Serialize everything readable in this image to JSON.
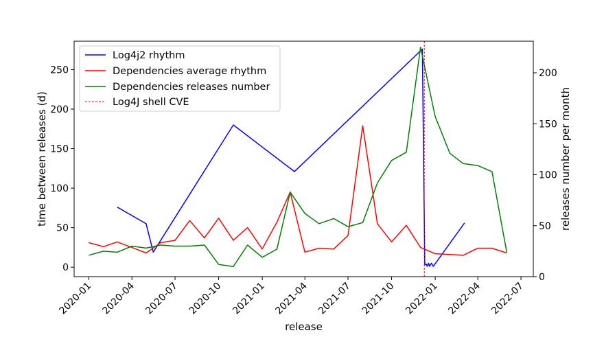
{
  "chart_data": {
    "type": "line",
    "xlabel": "release",
    "ylabel_left": "time between releases (d)",
    "ylabel_right": "releases number per month",
    "xlim": [
      "2019-12-01",
      "2022-07-27"
    ],
    "ylim_left": [
      -12,
      286
    ],
    "ylim_right": [
      0,
      231
    ],
    "x_ticks": [
      "2020-01",
      "2020-04",
      "2020-07",
      "2020-10",
      "2021-01",
      "2021-04",
      "2021-07",
      "2021-10",
      "2022-01",
      "2022-04",
      "2022-07"
    ],
    "y_ticks_left": [
      0,
      50,
      100,
      150,
      200,
      250
    ],
    "y_ticks_right": [
      0,
      50,
      100,
      150,
      200
    ],
    "legend_position": "upper-left",
    "grid": false,
    "series": [
      {
        "name": "Log4j2 rhythm",
        "color": "#0000ff",
        "axis": "left",
        "points": [
          [
            "2020-03-01",
            76
          ],
          [
            "2020-05-01",
            55
          ],
          [
            "2020-05-16",
            19
          ],
          [
            "2020-11-01",
            180
          ],
          [
            "2021-03-10",
            121
          ],
          [
            "2021-12-05",
            276
          ],
          [
            "2021-12-10",
            3
          ],
          [
            "2021-12-13",
            4
          ],
          [
            "2021-12-15",
            1
          ],
          [
            "2021-12-18",
            5
          ],
          [
            "2021-12-20",
            1
          ],
          [
            "2021-12-24",
            5
          ],
          [
            "2021-12-28",
            1
          ],
          [
            "2022-03-04",
            56
          ]
        ]
      },
      {
        "name": "Dependencies average rhythm",
        "color": "#ff0000",
        "axis": "left",
        "points": [
          [
            "2020-01-01",
            31
          ],
          [
            "2020-02-01",
            26
          ],
          [
            "2020-03-01",
            32
          ],
          [
            "2020-04-01",
            25
          ],
          [
            "2020-05-01",
            18
          ],
          [
            "2020-06-01",
            31
          ],
          [
            "2020-07-01",
            34
          ],
          [
            "2020-08-01",
            59
          ],
          [
            "2020-09-01",
            37
          ],
          [
            "2020-10-01",
            62
          ],
          [
            "2020-11-01",
            34
          ],
          [
            "2020-12-01",
            50
          ],
          [
            "2021-01-01",
            23
          ],
          [
            "2021-02-01",
            57
          ],
          [
            "2021-03-01",
            95
          ],
          [
            "2021-04-01",
            19
          ],
          [
            "2021-05-01",
            24
          ],
          [
            "2021-06-01",
            23
          ],
          [
            "2021-07-01",
            40
          ],
          [
            "2021-08-01",
            179
          ],
          [
            "2021-09-01",
            55
          ],
          [
            "2021-10-01",
            32
          ],
          [
            "2021-11-01",
            53
          ],
          [
            "2021-12-01",
            25
          ],
          [
            "2022-01-01",
            17
          ],
          [
            "2022-02-01",
            16
          ],
          [
            "2022-03-01",
            15
          ],
          [
            "2022-04-01",
            24
          ],
          [
            "2022-05-01",
            24
          ],
          [
            "2022-06-01",
            18
          ]
        ]
      },
      {
        "name": "Dependencies releases number",
        "color": "#008000",
        "axis": "right",
        "points": [
          [
            "2020-01-01",
            21
          ],
          [
            "2020-02-01",
            25
          ],
          [
            "2020-03-01",
            24
          ],
          [
            "2020-04-01",
            30
          ],
          [
            "2020-05-01",
            28
          ],
          [
            "2020-06-01",
            31
          ],
          [
            "2020-07-01",
            30
          ],
          [
            "2020-08-01",
            30
          ],
          [
            "2020-09-01",
            31
          ],
          [
            "2020-10-01",
            12
          ],
          [
            "2020-11-01",
            10
          ],
          [
            "2020-12-01",
            31
          ],
          [
            "2021-01-01",
            19
          ],
          [
            "2021-02-01",
            27
          ],
          [
            "2021-03-01",
            83
          ],
          [
            "2021-04-01",
            62
          ],
          [
            "2021-05-01",
            52
          ],
          [
            "2021-06-01",
            57
          ],
          [
            "2021-07-01",
            49
          ],
          [
            "2021-08-01",
            53
          ],
          [
            "2021-09-01",
            92
          ],
          [
            "2021-10-01",
            114
          ],
          [
            "2021-11-01",
            122
          ],
          [
            "2021-12-01",
            225
          ],
          [
            "2022-01-01",
            157
          ],
          [
            "2022-02-01",
            121
          ],
          [
            "2022-03-01",
            111
          ],
          [
            "2022-04-01",
            109
          ],
          [
            "2022-05-01",
            103
          ],
          [
            "2022-06-01",
            24
          ]
        ]
      }
    ],
    "vline": {
      "name": "Log4J shell CVE",
      "x": "2021-12-09",
      "color": "#ff0000",
      "style": "dashed"
    }
  }
}
